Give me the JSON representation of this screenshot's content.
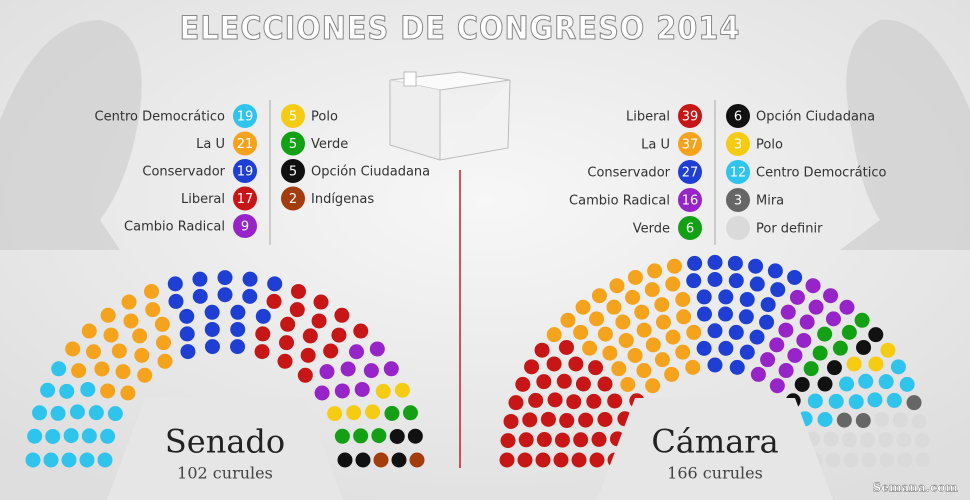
{
  "title": "ELECCIONES DE CONGRESO 2014",
  "source": "Semana.com",
  "chart_data": [
    {
      "type": "parliament",
      "title": "Senado",
      "subtitle": "102 curules",
      "series": [
        {
          "name": "Centro Democrático",
          "color": "#2ec4ec",
          "value": 19
        },
        {
          "name": "La U",
          "color": "#f5a21c",
          "value": 21
        },
        {
          "name": "Conservador",
          "color": "#1e3ed4",
          "value": 19
        },
        {
          "name": "Liberal",
          "color": "#c81616",
          "value": 17
        },
        {
          "name": "Cambio Radical",
          "color": "#9624c8",
          "value": 9
        },
        {
          "name": "Polo",
          "color": "#f6cc12",
          "value": 5
        },
        {
          "name": "Verde",
          "color": "#14a014",
          "value": 5
        },
        {
          "name": "Opción Ciudadana",
          "color": "#111111",
          "value": 5
        },
        {
          "name": "Indígenas",
          "color": "#a33c0e",
          "value": 2
        }
      ]
    },
    {
      "type": "parliament",
      "title": "Cámara",
      "subtitle": "166 curules",
      "series": [
        {
          "name": "Liberal",
          "color": "#c81616",
          "value": 39
        },
        {
          "name": "La U",
          "color": "#f5a21c",
          "value": 37
        },
        {
          "name": "Conservador",
          "color": "#1e3ed4",
          "value": 27
        },
        {
          "name": "Cambio Radical",
          "color": "#9624c8",
          "value": 16
        },
        {
          "name": "Verde",
          "color": "#14a014",
          "value": 6
        },
        {
          "name": "Opción Ciudadana",
          "color": "#111111",
          "value": 6
        },
        {
          "name": "Polo",
          "color": "#f6cc12",
          "value": 3
        },
        {
          "name": "Centro Democrático",
          "color": "#2ec4ec",
          "value": 12
        },
        {
          "name": "Mira",
          "color": "#666666",
          "value": 3
        },
        {
          "name": "Por definir",
          "color": "#dadada",
          "value": 17,
          "show_value": false
        }
      ]
    }
  ]
}
